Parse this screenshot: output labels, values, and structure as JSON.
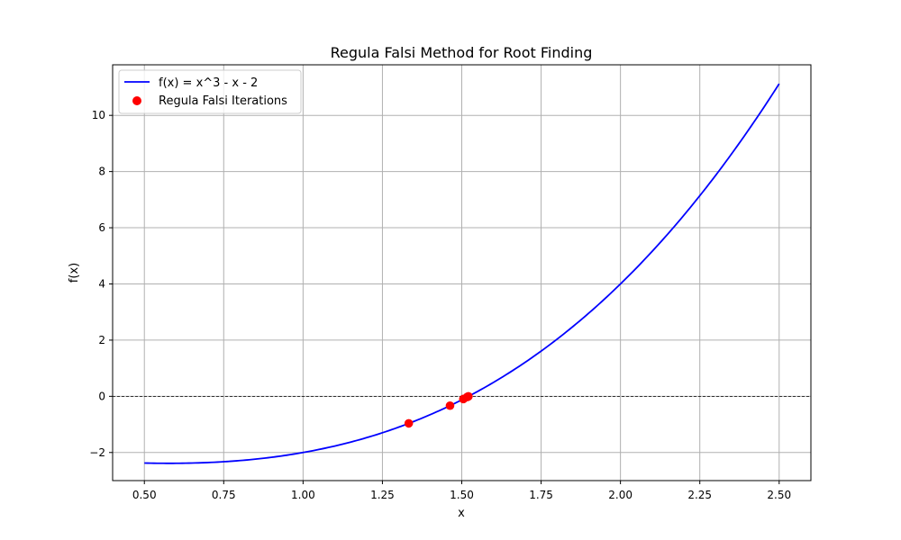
{
  "chart_data": {
    "type": "line",
    "title": "Regula Falsi Method for Root Finding",
    "xlabel": "x",
    "ylabel": "f(x)",
    "xlim": [
      0.4,
      2.6
    ],
    "ylim": [
      -3.0,
      11.8
    ],
    "x_ticks": [
      0.5,
      0.75,
      1.0,
      1.25,
      1.5,
      1.75,
      2.0,
      2.25,
      2.5
    ],
    "x_tick_labels": [
      "0.50",
      "0.75",
      "1.00",
      "1.25",
      "1.50",
      "1.75",
      "2.00",
      "2.25",
      "2.50"
    ],
    "y_ticks": [
      -2,
      0,
      2,
      4,
      6,
      8,
      10
    ],
    "y_tick_labels": [
      "−2",
      "0",
      "2",
      "4",
      "6",
      "8",
      "10"
    ],
    "grid": true,
    "legend_position": "upper-left",
    "reference_line": {
      "y": 0,
      "style": "dashed",
      "color": "#000000"
    },
    "series": [
      {
        "name": "f(x) = x^3 - x - 2",
        "kind": "line",
        "color": "#0000ff",
        "function": "x^3 - x - 2",
        "x_range": [
          0.5,
          2.5
        ]
      },
      {
        "name": "Regula Falsi Iterations",
        "kind": "scatter",
        "color": "#ff0000",
        "points": [
          {
            "x": 1.333,
            "y": -0.963
          },
          {
            "x": 1.463,
            "y": -0.333
          },
          {
            "x": 1.505,
            "y": -0.096
          },
          {
            "x": 1.517,
            "y": -0.026
          },
          {
            "x": 1.52,
            "y": -0.007
          },
          {
            "x": 1.521,
            "y": -0.002
          }
        ]
      }
    ]
  }
}
